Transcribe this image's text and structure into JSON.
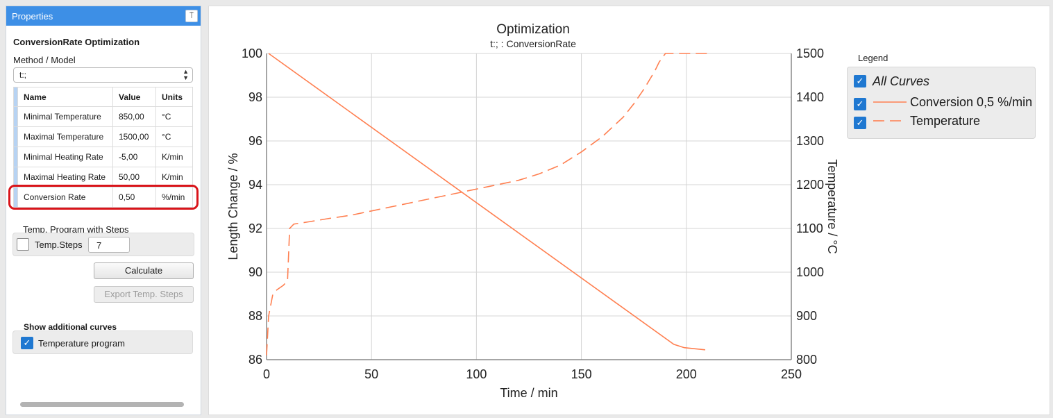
{
  "panel": {
    "title": "Properties",
    "pin_icon": "⍑",
    "optimization_title": "ConversionRate Optimization",
    "method_label": "Method / Model",
    "method_value": "t:;",
    "table": {
      "headers": [
        "Name",
        "Value",
        "Units"
      ],
      "rows": [
        {
          "name": "Minimal Temperature",
          "value": "850,00",
          "unit": "°C"
        },
        {
          "name": "Maximal Temperature",
          "value": "1500,00",
          "unit": "°C"
        },
        {
          "name": "Minimal Heating Rate",
          "value": "-5,00",
          "unit": "K/min"
        },
        {
          "name": "Maximal Heating Rate",
          "value": "50,00",
          "unit": "K/min"
        },
        {
          "name": "Conversion Rate",
          "value": "0,50",
          "unit": "%/min"
        }
      ]
    },
    "steps_header": "Temp. Program with Steps",
    "steps_label": "Temp.Steps",
    "steps_value": "7",
    "steps_checked": false,
    "calculate_label": "Calculate",
    "export_label": "Export Temp. Steps",
    "additional_header": "Show additional curves",
    "temp_program_label": "Temperature program",
    "temp_program_checked": true,
    "highlight_color": "#d9141a",
    "accent_color": "#3d8fe6"
  },
  "legend": {
    "title": "Legend",
    "all_label": "All Curves",
    "items": [
      {
        "label": "Conversion 0,5 %/min",
        "style": "solid",
        "checked": true
      },
      {
        "label": "Temperature",
        "style": "dashed",
        "checked": true
      }
    ]
  },
  "chart_data": {
    "type": "line",
    "title": "Optimization",
    "subtitle": "t:; : ConversionRate",
    "xlabel": "Time / min",
    "ylabel": "Length Change / %",
    "y2label": "Temperature / °C",
    "xlim": [
      0,
      250
    ],
    "ylim": [
      86,
      100
    ],
    "y2lim": [
      800,
      1500
    ],
    "xticks": [
      0,
      50,
      100,
      150,
      200,
      250
    ],
    "yticks": [
      86,
      88,
      90,
      92,
      94,
      96,
      98,
      100
    ],
    "y2ticks": [
      800,
      900,
      1000,
      1100,
      1200,
      1300,
      1400,
      1500
    ],
    "grid": true,
    "color": "#ff7f50",
    "series": [
      {
        "name": "Conversion 0,5 %/min",
        "axis": "left",
        "style": "solid",
        "x": [
          1,
          194,
          199,
          209
        ],
        "y": [
          100,
          86.7,
          86.55,
          86.45
        ]
      },
      {
        "name": "Temperature",
        "axis": "right",
        "style": "dashed",
        "x": [
          0,
          1,
          3,
          5,
          8,
          10,
          11,
          13,
          20,
          30,
          40,
          50,
          60,
          70,
          80,
          90,
          100,
          110,
          120,
          130,
          140,
          150,
          160,
          170,
          175,
          180,
          185,
          187,
          190,
          192,
          194,
          200,
          210
        ],
        "y": [
          810,
          900,
          950,
          960,
          970,
          980,
          1100,
          1110,
          1115,
          1123,
          1130,
          1140,
          1150,
          1160,
          1170,
          1180,
          1190,
          1200,
          1210,
          1225,
          1245,
          1275,
          1310,
          1355,
          1385,
          1420,
          1460,
          1480,
          1500,
          1500,
          1500,
          1500,
          1500
        ]
      }
    ]
  }
}
